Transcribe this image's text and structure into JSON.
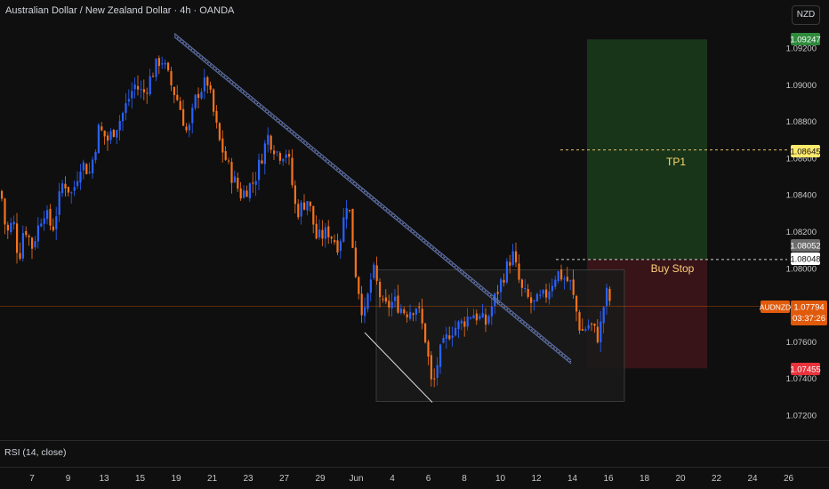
{
  "title": "Australian Dollar / New Zealand Dollar · 4h · OANDA",
  "currency_button": "NZD",
  "rsi_label": "RSI (14, close)",
  "symbol_tag": "AUDNZD",
  "price_tags": {
    "tp_top": "1.09247",
    "tp1": "1.08645",
    "gray": "1.08052",
    "buy_stop": "1.08048",
    "current": "1.07794",
    "countdown": "03:37:26",
    "stop": "1.07455"
  },
  "annotations": {
    "tp1": "TP1",
    "buy_stop": "Buy Stop"
  },
  "colors": {
    "up": "#2962ff",
    "down": "#f7731c",
    "target_zone": "#1b3a1b",
    "stop_zone": "#3d1519",
    "current_tag": "#e05a0c",
    "tp1_tag": "#ffeb6b",
    "stop_tag": "#e8323c",
    "top_tag": "#2e8b3c"
  },
  "chart_data": {
    "type": "candlestick",
    "title": "Australian Dollar / New Zealand Dollar · 4h · OANDA",
    "x_tick_labels": [
      "7",
      "9",
      "13",
      "15",
      "19",
      "21",
      "23",
      "27",
      "29",
      "Jun",
      "4",
      "6",
      "8",
      "10",
      "12",
      "14",
      "16",
      "18",
      "20",
      "22",
      "24",
      "26"
    ],
    "y_tick_labels": [
      "1.09200",
      "1.09000",
      "1.08800",
      "1.08600",
      "1.08400",
      "1.08200",
      "1.08000",
      "1.07800",
      "1.07600",
      "1.07400",
      "1.07200"
    ],
    "y_range": [
      1.0705,
      1.0945
    ],
    "price_path": [
      [
        0,
        1.0842
      ],
      [
        6,
        1.0818
      ],
      [
        14,
        1.0826
      ],
      [
        20,
        1.0804
      ],
      [
        26,
        1.0824
      ],
      [
        35,
        1.0812
      ],
      [
        48,
        1.0832
      ],
      [
        58,
        1.0821
      ],
      [
        70,
        1.0848
      ],
      [
        80,
        1.084
      ],
      [
        90,
        1.0858
      ],
      [
        100,
        1.0852
      ],
      [
        110,
        1.0876
      ],
      [
        120,
        1.087
      ],
      [
        135,
        1.0882
      ],
      [
        150,
        1.09
      ],
      [
        160,
        1.0895
      ],
      [
        172,
        1.0908
      ],
      [
        180,
        1.0915
      ],
      [
        192,
        1.0899
      ],
      [
        200,
        1.089
      ],
      [
        210,
        1.0872
      ],
      [
        220,
        1.0895
      ],
      [
        232,
        1.0902
      ],
      [
        245,
        1.087
      ],
      [
        258,
        1.0852
      ],
      [
        270,
        1.084
      ],
      [
        285,
        1.0848
      ],
      [
        300,
        1.0872
      ],
      [
        312,
        1.0862
      ],
      [
        322,
        1.0864
      ],
      [
        332,
        1.083
      ],
      [
        345,
        1.0838
      ],
      [
        355,
        1.0816
      ],
      [
        368,
        1.082
      ],
      [
        380,
        1.0812
      ],
      [
        390,
        1.084
      ],
      [
        398,
        1.08
      ],
      [
        408,
        1.0772
      ],
      [
        418,
        1.08
      ],
      [
        430,
        1.0778
      ],
      [
        442,
        1.0782
      ],
      [
        455,
        1.0776
      ],
      [
        468,
        1.078
      ],
      [
        478,
        1.076
      ],
      [
        485,
        1.0733
      ],
      [
        492,
        1.0752
      ],
      [
        505,
        1.0766
      ],
      [
        518,
        1.077
      ],
      [
        530,
        1.0776
      ],
      [
        545,
        1.077
      ],
      [
        560,
        1.079
      ],
      [
        575,
        1.0808
      ],
      [
        585,
        1.0788
      ],
      [
        598,
        1.078
      ],
      [
        612,
        1.0785
      ],
      [
        625,
        1.0798
      ],
      [
        640,
        1.0792
      ],
      [
        652,
        1.0765
      ],
      [
        662,
        1.077
      ],
      [
        672,
        1.0762
      ],
      [
        680,
        1.0787
      ],
      [
        686,
        1.0781
      ]
    ],
    "trendlines": [
      {
        "name": "descending-resistance",
        "from": [
          196,
          1.0928
        ],
        "to": [
          642,
          1.075
        ]
      },
      {
        "name": "support-diagonal",
        "from": [
          410,
          1.0765
        ],
        "to": [
          486,
          1.0727
        ]
      }
    ],
    "range_box": {
      "x_from": 423,
      "x_to": 702,
      "y_from": 1.07275,
      "y_to": 1.07992
    },
    "long_position": {
      "x_from": 660,
      "x_to": 795,
      "entry": 1.08048,
      "target": 1.09247,
      "stop": 1.07455
    },
    "levels": [
      {
        "label": "TP1",
        "price": 1.08645
      },
      {
        "label": "Buy Stop",
        "price": 1.08048
      },
      {
        "label": "current",
        "price": 1.07794
      }
    ]
  }
}
